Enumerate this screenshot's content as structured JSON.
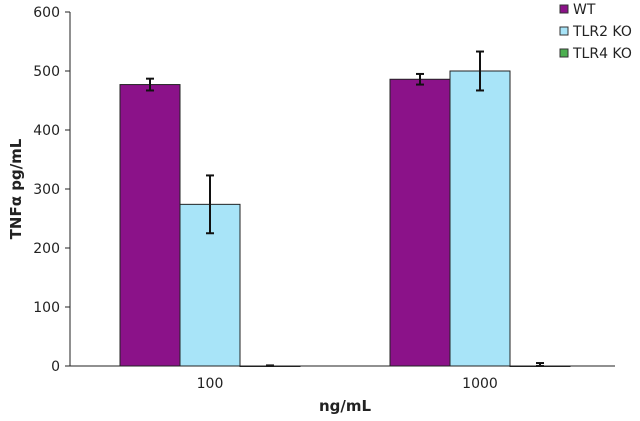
{
  "chart_data": {
    "type": "bar",
    "title": "",
    "xlabel": "ng/mL",
    "ylabel": "TNFα pg/mL",
    "ylim": [
      0,
      600
    ],
    "yticks": [
      "0",
      "100",
      "200",
      "300",
      "400",
      "500",
      "600"
    ],
    "categories": [
      "100",
      "1000"
    ],
    "series": [
      {
        "name": "WT",
        "color": "#8b1289",
        "values": [
          477,
          486
        ],
        "errors": [
          10,
          9
        ]
      },
      {
        "name": "TLR2 KO",
        "color": "#a8e4f8",
        "values": [
          274,
          500
        ],
        "errors": [
          49,
          33
        ]
      },
      {
        "name": "TLR4 KO",
        "color": "#4caf50",
        "values": [
          0,
          0
        ],
        "errors": [
          1,
          5
        ]
      }
    ],
    "grid": false,
    "legend": "top-right"
  }
}
